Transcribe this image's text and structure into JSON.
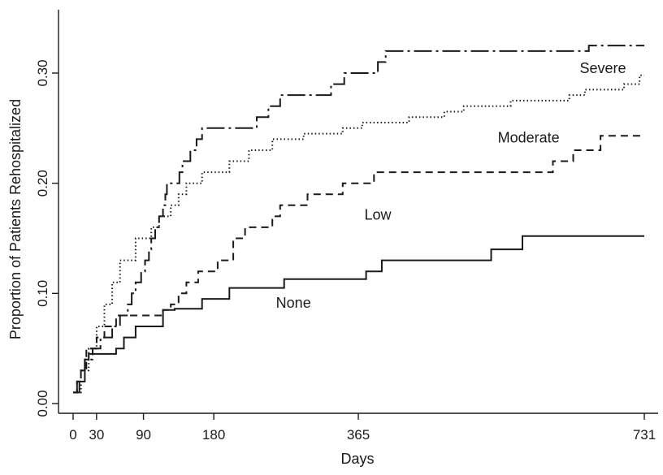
{
  "chart_data": {
    "type": "line",
    "step": true,
    "xlabel": "Days",
    "ylabel": "Proportion of Patients Rehospitalized",
    "xlim": [
      0,
      731
    ],
    "ylim": [
      0,
      0.35
    ],
    "x_ticks": [
      0,
      30,
      90,
      180,
      365,
      731
    ],
    "x_tick_labels": [
      "0",
      "30",
      "90",
      "180",
      "365",
      "731"
    ],
    "y_ticks": [
      0,
      0.1,
      0.2,
      0.3
    ],
    "y_tick_labels": [
      "0.00",
      "0.10",
      "0.20",
      "0.30"
    ],
    "grid": false,
    "series": [
      {
        "name": "Severe",
        "dash": "longdashdot",
        "label_at": [
          678,
          0.3
        ],
        "points": [
          [
            0,
            0.01
          ],
          [
            5,
            0.02
          ],
          [
            10,
            0.03
          ],
          [
            15,
            0.04
          ],
          [
            25,
            0.05
          ],
          [
            35,
            0.06
          ],
          [
            50,
            0.07
          ],
          [
            60,
            0.08
          ],
          [
            70,
            0.09
          ],
          [
            75,
            0.1
          ],
          [
            80,
            0.11
          ],
          [
            87,
            0.12
          ],
          [
            92,
            0.13
          ],
          [
            97,
            0.14
          ],
          [
            100,
            0.15
          ],
          [
            105,
            0.16
          ],
          [
            110,
            0.17
          ],
          [
            115,
            0.18
          ],
          [
            118,
            0.19
          ],
          [
            120,
            0.2
          ],
          [
            136,
            0.21
          ],
          [
            140,
            0.22
          ],
          [
            150,
            0.23
          ],
          [
            158,
            0.24
          ],
          [
            165,
            0.25
          ],
          [
            235,
            0.26
          ],
          [
            250,
            0.27
          ],
          [
            265,
            0.28
          ],
          [
            330,
            0.29
          ],
          [
            347,
            0.3
          ],
          [
            390,
            0.31
          ],
          [
            400,
            0.32
          ],
          [
            660,
            0.325
          ],
          [
            731,
            0.325
          ]
        ]
      },
      {
        "name": "Moderate",
        "dash": "dotted",
        "label_at": [
          583,
          0.237
        ],
        "points": [
          [
            0,
            0.01
          ],
          [
            10,
            0.03
          ],
          [
            20,
            0.05
          ],
          [
            30,
            0.07
          ],
          [
            40,
            0.09
          ],
          [
            50,
            0.11
          ],
          [
            60,
            0.13
          ],
          [
            80,
            0.15
          ],
          [
            100,
            0.16
          ],
          [
            110,
            0.17
          ],
          [
            125,
            0.18
          ],
          [
            135,
            0.19
          ],
          [
            145,
            0.2
          ],
          [
            165,
            0.21
          ],
          [
            200,
            0.22
          ],
          [
            225,
            0.23
          ],
          [
            255,
            0.24
          ],
          [
            295,
            0.245
          ],
          [
            345,
            0.25
          ],
          [
            370,
            0.255
          ],
          [
            430,
            0.26
          ],
          [
            475,
            0.265
          ],
          [
            500,
            0.27
          ],
          [
            560,
            0.275
          ],
          [
            635,
            0.28
          ],
          [
            655,
            0.285
          ],
          [
            705,
            0.29
          ],
          [
            725,
            0.298
          ],
          [
            731,
            0.298
          ]
        ]
      },
      {
        "name": "Low",
        "dash": "dashed",
        "label_at": [
          390,
          0.167
        ],
        "points": [
          [
            0,
            0.01
          ],
          [
            5,
            0.02
          ],
          [
            10,
            0.03
          ],
          [
            17,
            0.05
          ],
          [
            30,
            0.06
          ],
          [
            40,
            0.07
          ],
          [
            55,
            0.08
          ],
          [
            100,
            0.08
          ],
          [
            115,
            0.085
          ],
          [
            125,
            0.09
          ],
          [
            135,
            0.1
          ],
          [
            145,
            0.11
          ],
          [
            160,
            0.12
          ],
          [
            185,
            0.13
          ],
          [
            205,
            0.15
          ],
          [
            220,
            0.16
          ],
          [
            255,
            0.17
          ],
          [
            265,
            0.18
          ],
          [
            300,
            0.19
          ],
          [
            345,
            0.2
          ],
          [
            365,
            0.2
          ],
          [
            385,
            0.21
          ],
          [
            440,
            0.21
          ],
          [
            614,
            0.22
          ],
          [
            640,
            0.23
          ],
          [
            675,
            0.243
          ],
          [
            731,
            0.243
          ]
        ]
      },
      {
        "name": "None",
        "dash": "solid",
        "label_at": [
          282,
          0.087
        ],
        "points": [
          [
            0,
            0.01
          ],
          [
            8,
            0.02
          ],
          [
            15,
            0.04
          ],
          [
            20,
            0.045
          ],
          [
            55,
            0.05
          ],
          [
            65,
            0.06
          ],
          [
            80,
            0.07
          ],
          [
            115,
            0.085
          ],
          [
            130,
            0.086
          ],
          [
            165,
            0.095
          ],
          [
            200,
            0.105
          ],
          [
            270,
            0.113
          ],
          [
            375,
            0.12
          ],
          [
            395,
            0.13
          ],
          [
            535,
            0.14
          ],
          [
            575,
            0.152
          ],
          [
            731,
            0.152
          ]
        ]
      }
    ]
  }
}
